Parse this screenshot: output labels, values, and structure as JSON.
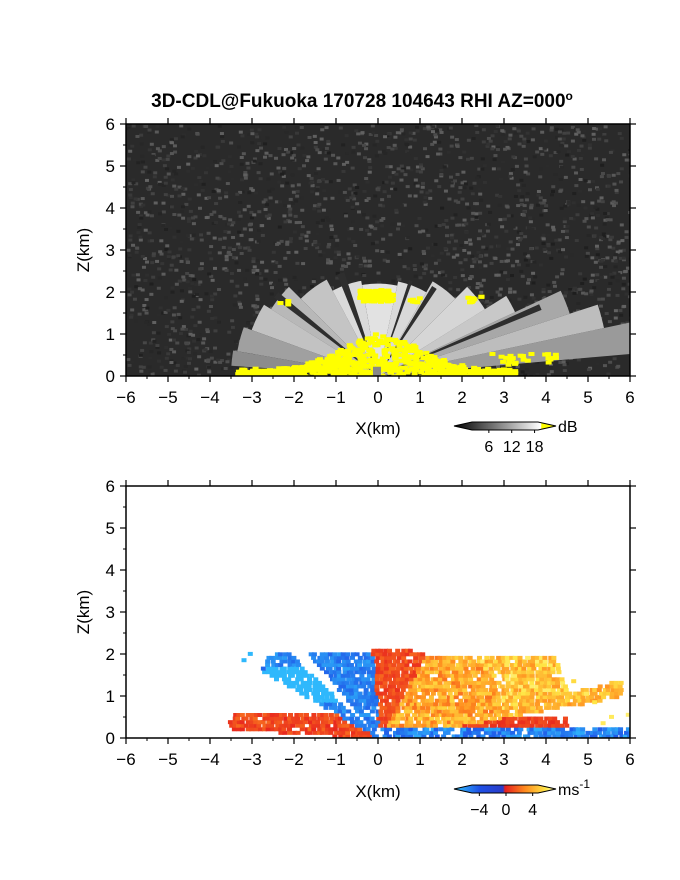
{
  "chart_data": [
    {
      "type": "heatmap",
      "panel": "reflectivity",
      "title": "3D-CDL@Fukuoka 170728 104643 RHI AZ=000",
      "title_superscript": "o",
      "xlabel": "X(km)",
      "ylabel": "Z(km)",
      "xlim": [
        -6,
        6
      ],
      "ylim": [
        0,
        6
      ],
      "xticks": [
        -6,
        -5,
        -4,
        -3,
        -2,
        -1,
        0,
        1,
        2,
        3,
        4,
        5,
        6
      ],
      "yticks": [
        0,
        1,
        2,
        3,
        4,
        5,
        6
      ],
      "colorbar": {
        "unit": "dB",
        "ticks": [
          6,
          12,
          18
        ],
        "range": [
          0,
          21
        ]
      },
      "colors": {
        "background_noise": "#2a2a2a",
        "saturated": "#ffff00"
      },
      "features": [
        {
          "kind": "echo_fan",
          "x_range": [
            -3.3,
            6
          ],
          "z_top": 2.1
        },
        {
          "kind": "strong_echo_near_ground",
          "x_range": [
            -3.4,
            3.2
          ],
          "z_top": 0.9,
          "color": "yellow"
        },
        {
          "kind": "strong_echo_cap",
          "x_range": [
            -0.5,
            0.3
          ],
          "z_range": [
            1.8,
            2.1
          ],
          "color": "yellow"
        }
      ]
    },
    {
      "type": "heatmap",
      "panel": "doppler_velocity",
      "xlabel": "X(km)",
      "ylabel": "Z(km)",
      "xlim": [
        -6,
        6
      ],
      "ylim": [
        0,
        6
      ],
      "xticks": [
        -6,
        -5,
        -4,
        -3,
        -2,
        -1,
        0,
        1,
        2,
        3,
        4,
        5,
        6
      ],
      "yticks": [
        0,
        1,
        2,
        3,
        4,
        5,
        6
      ],
      "colorbar": {
        "unit": "ms",
        "unit_superscript": "-1",
        "ticks": [
          -4,
          0,
          4
        ],
        "range": [
          -6,
          6
        ]
      },
      "colors": {
        "negative": "#1e50e6",
        "zero": "#e61e1e",
        "positive": "#ffe646"
      },
      "features": [
        {
          "kind": "approaching_flow",
          "x_range": [
            -3.0,
            -0.1
          ],
          "z_range": [
            0.8,
            2.1
          ],
          "velocity": -5
        },
        {
          "kind": "receding_flow",
          "x_range": [
            0,
            4.2
          ],
          "z_range": [
            0.3,
            2.1
          ],
          "velocity": 4
        },
        {
          "kind": "low_level_red",
          "x_range": [
            -3.5,
            0
          ],
          "z_range": [
            0,
            0.6
          ],
          "velocity": 0.5
        },
        {
          "kind": "low_level_blue",
          "x_range": [
            0,
            6
          ],
          "z_range": [
            0,
            0.3
          ],
          "velocity": -4
        }
      ]
    }
  ]
}
